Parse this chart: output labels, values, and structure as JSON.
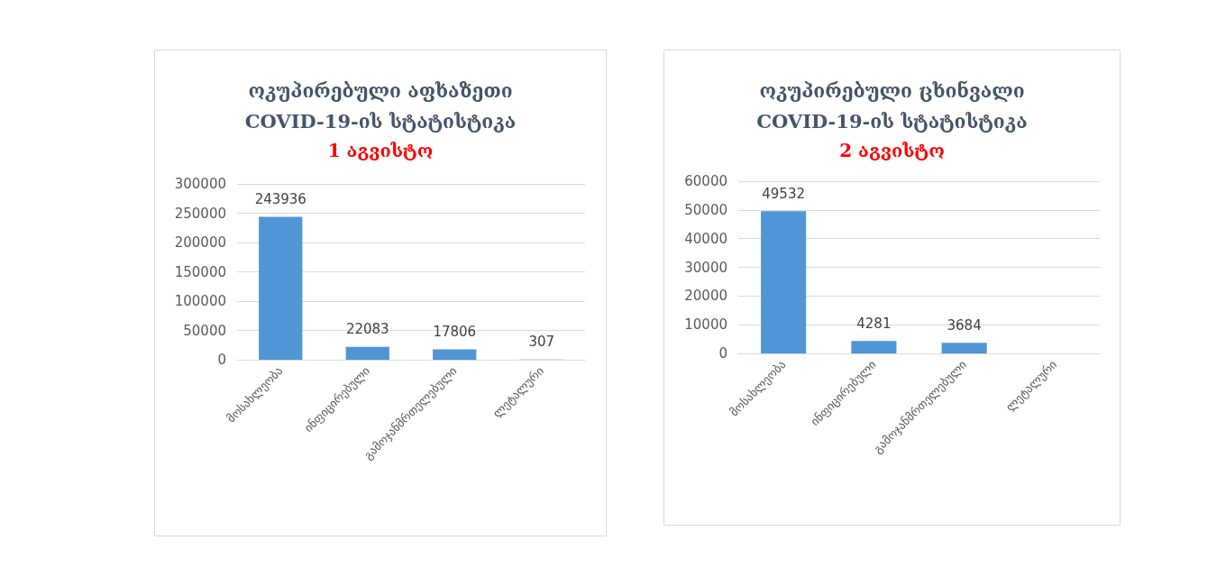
{
  "chart_data": [
    {
      "type": "bar",
      "title": "ოკუპირებული აფხაზეთი\nCOVID-19-ის სტატისტიკა",
      "subtitle": "1 აგვისტო",
      "categories": [
        "მოსახლეობა",
        "ინფიცირებული",
        "გამოჯანმრთელებული",
        "ლეტალური"
      ],
      "values": [
        243936,
        22083,
        17806,
        307
      ],
      "color": "#5095d5",
      "ylim": [
        0,
        300000
      ],
      "yticks": [
        0,
        50000,
        100000,
        150000,
        200000,
        250000,
        300000
      ],
      "grid": "y",
      "data_labels": true
    },
    {
      "type": "bar",
      "title": "ოკუპირებული ცხინვალი\nCOVID-19-ის სტატისტიკა",
      "subtitle": "2 აგვისტო",
      "categories": [
        "მოსახლეობა",
        "ინფიცირებული",
        "გამოჯანმრთელებული",
        "ლეტალური"
      ],
      "values": [
        49532,
        4281,
        3684,
        null
      ],
      "color": "#5095d5",
      "ylim": [
        0,
        60000
      ],
      "yticks": [
        0,
        10000,
        20000,
        30000,
        40000,
        50000,
        60000
      ],
      "grid": "y",
      "data_labels": true
    }
  ]
}
